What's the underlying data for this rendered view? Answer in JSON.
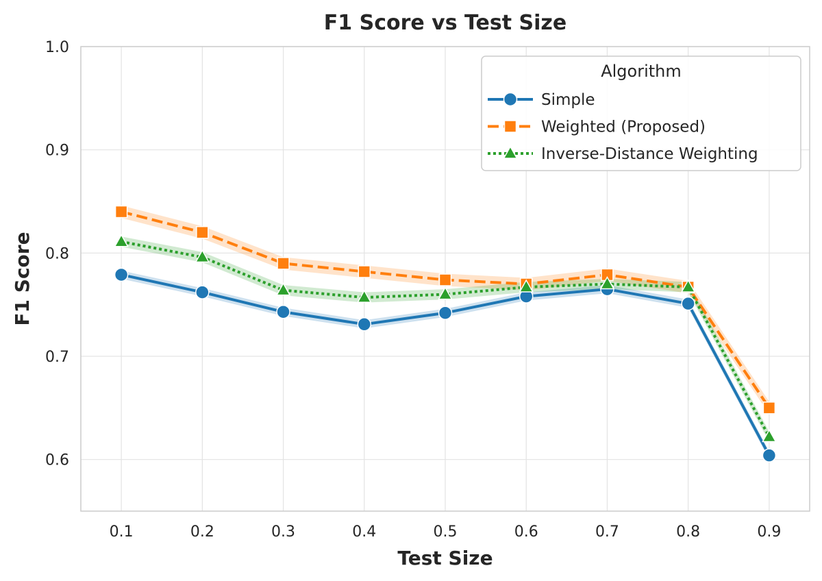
{
  "chart_data": {
    "type": "line",
    "title": "F1 Score vs Test Size",
    "xlabel": "Test Size",
    "ylabel": "F1 Score",
    "x": [
      0.1,
      0.2,
      0.3,
      0.4,
      0.5,
      0.6,
      0.7,
      0.8,
      0.9
    ],
    "x_ticks": [
      "0.1",
      "0.2",
      "0.3",
      "0.4",
      "0.5",
      "0.6",
      "0.7",
      "0.8",
      "0.9"
    ],
    "ylim": [
      0.55,
      1.0
    ],
    "y_ticks": [
      "0.6",
      "0.7",
      "0.8",
      "0.9",
      "1.0"
    ],
    "y_tick_values": [
      0.6,
      0.7,
      0.8,
      0.9,
      1.0
    ],
    "grid": true,
    "legend": {
      "title": "Algorithm",
      "position": "top-right"
    },
    "series": [
      {
        "name": "Simple",
        "color": "#1f77b4",
        "marker": "circle",
        "linestyle": "solid",
        "values": [
          0.779,
          0.762,
          0.743,
          0.731,
          0.742,
          0.758,
          0.765,
          0.751,
          0.604
        ],
        "band": 0.004
      },
      {
        "name": "Weighted (Proposed)",
        "color": "#ff7f0e",
        "marker": "square",
        "linestyle": "dashed",
        "values": [
          0.84,
          0.82,
          0.79,
          0.782,
          0.774,
          0.77,
          0.779,
          0.767,
          0.65
        ],
        "band": 0.006
      },
      {
        "name": "Inverse-Distance Weighting",
        "color": "#2ca02c",
        "marker": "triangle",
        "linestyle": "dotted",
        "values": [
          0.811,
          0.796,
          0.764,
          0.757,
          0.76,
          0.767,
          0.77,
          0.767,
          0.622
        ],
        "band": 0.005
      }
    ]
  }
}
